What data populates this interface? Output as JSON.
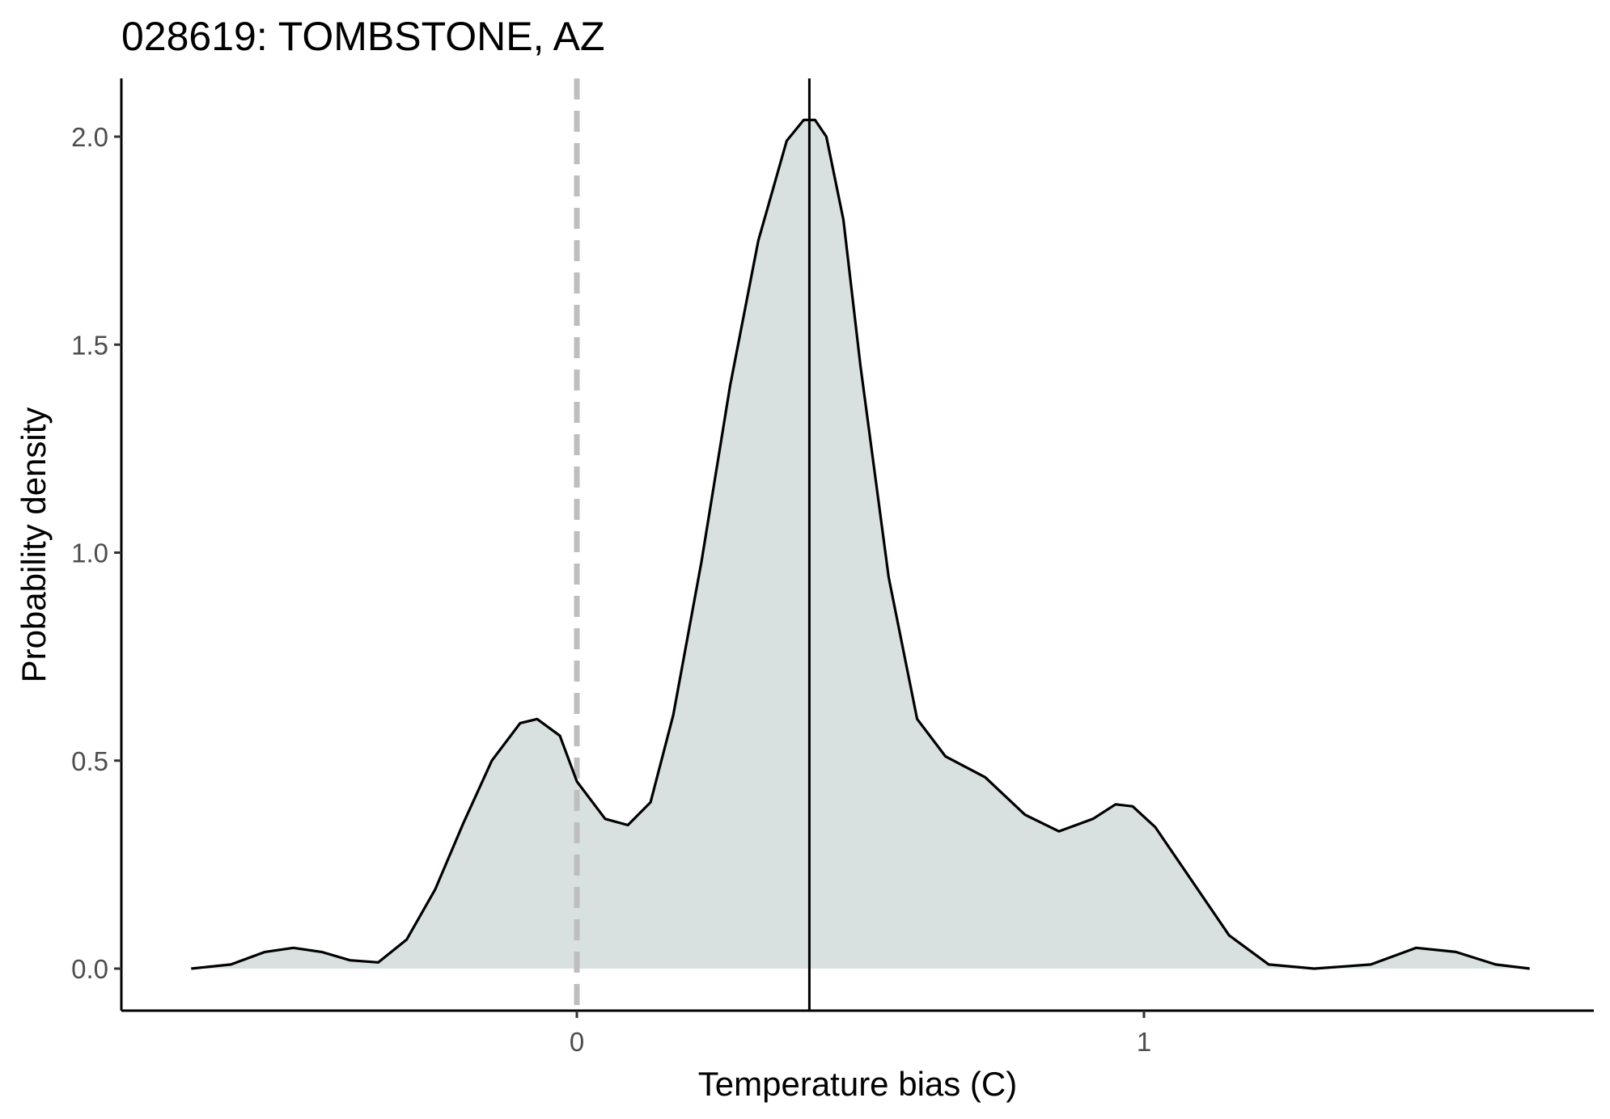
{
  "chart_data": {
    "type": "area",
    "title": "028619: TOMBSTONE, AZ",
    "xlabel": "Temperature bias (C)",
    "ylabel": "Probability density",
    "xlim": [
      -0.8,
      1.8
    ],
    "ylim": [
      -0.1,
      2.15
    ],
    "x_ticks": [
      0,
      1
    ],
    "x_tick_labels": [
      "0",
      "1"
    ],
    "y_ticks": [
      0.0,
      0.5,
      1.0,
      1.5,
      2.0
    ],
    "y_tick_labels": [
      "0.0",
      "0.5",
      "1.0",
      "1.5",
      "2.0"
    ],
    "grid": false,
    "legend": "none",
    "reference_lines": [
      {
        "x": 0,
        "style": "dashed",
        "color": "#bebebe"
      },
      {
        "x": 0.41,
        "style": "solid",
        "color": "#000000"
      }
    ],
    "fill_color": "#d9e0e0",
    "line_color": "#000000",
    "x": [
      -0.68,
      -0.61,
      -0.55,
      -0.5,
      -0.45,
      -0.4,
      -0.35,
      -0.3,
      -0.25,
      -0.2,
      -0.15,
      -0.1,
      -0.07,
      -0.03,
      0.0,
      0.05,
      0.09,
      0.13,
      0.17,
      0.22,
      0.27,
      0.32,
      0.37,
      0.4,
      0.42,
      0.44,
      0.47,
      0.5,
      0.55,
      0.6,
      0.65,
      0.72,
      0.79,
      0.85,
      0.91,
      0.95,
      0.98,
      1.02,
      1.08,
      1.15,
      1.22,
      1.3,
      1.4,
      1.48,
      1.55,
      1.62,
      1.68
    ],
    "y": [
      0.0,
      0.01,
      0.04,
      0.05,
      0.04,
      0.02,
      0.015,
      0.07,
      0.19,
      0.35,
      0.5,
      0.59,
      0.6,
      0.56,
      0.45,
      0.36,
      0.345,
      0.4,
      0.61,
      0.98,
      1.4,
      1.75,
      1.99,
      2.04,
      2.04,
      2.0,
      1.8,
      1.45,
      0.94,
      0.6,
      0.51,
      0.46,
      0.37,
      0.33,
      0.36,
      0.395,
      0.39,
      0.34,
      0.22,
      0.08,
      0.01,
      0.0,
      0.01,
      0.05,
      0.04,
      0.01,
      0.0
    ]
  }
}
